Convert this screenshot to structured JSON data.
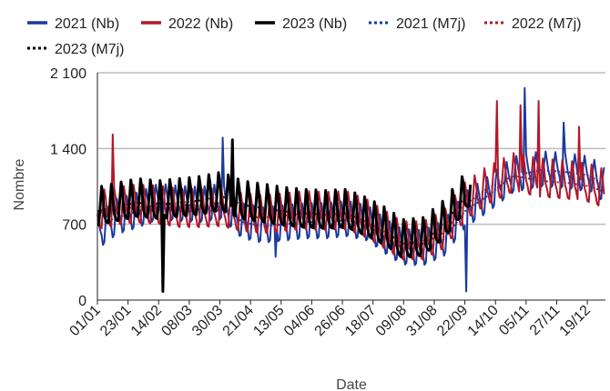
{
  "chart_data": {
    "type": "line",
    "title": "",
    "xlabel": "Date",
    "ylabel": "Nombre",
    "xlim": [
      1,
      366
    ],
    "ylim": [
      0,
      2100
    ],
    "grid": "horizontal",
    "legend_position": "top",
    "y_ticks": [
      {
        "value": 0,
        "label": "0"
      },
      {
        "value": 700,
        "label": "700"
      },
      {
        "value": 1400,
        "label": "1 400"
      },
      {
        "value": 2100,
        "label": "2 100"
      }
    ],
    "x_ticks": [
      {
        "day": 1,
        "label": "01/01"
      },
      {
        "day": 23,
        "label": "23/01"
      },
      {
        "day": 45,
        "label": "14/02"
      },
      {
        "day": 67,
        "label": "08/03"
      },
      {
        "day": 89,
        "label": "30/03"
      },
      {
        "day": 111,
        "label": "21/04"
      },
      {
        "day": 133,
        "label": "13/05"
      },
      {
        "day": 155,
        "label": "04/06"
      },
      {
        "day": 177,
        "label": "26/06"
      },
      {
        "day": 199,
        "label": "18/07"
      },
      {
        "day": 221,
        "label": "09/08"
      },
      {
        "day": 243,
        "label": "31/08"
      },
      {
        "day": 265,
        "label": "22/09"
      },
      {
        "day": 287,
        "label": "14/10"
      },
      {
        "day": 309,
        "label": "05/11"
      },
      {
        "day": 331,
        "label": "27/11"
      },
      {
        "day": 353,
        "label": "19/12"
      }
    ],
    "series": [
      {
        "name": "2021 (Nb)",
        "color": "#1a3a9c",
        "style": "solid",
        "points": [
          [
            1,
            620
          ],
          [
            15,
            760
          ],
          [
            30,
            820
          ],
          [
            45,
            900
          ],
          [
            60,
            880
          ],
          [
            75,
            870
          ],
          [
            90,
            900
          ],
          [
            105,
            720
          ],
          [
            120,
            680
          ],
          [
            135,
            700
          ],
          [
            150,
            720
          ],
          [
            165,
            720
          ],
          [
            180,
            740
          ],
          [
            195,
            700
          ],
          [
            210,
            560
          ],
          [
            220,
            480
          ],
          [
            235,
            470
          ],
          [
            250,
            560
          ],
          [
            265,
            820
          ],
          [
            280,
            950
          ],
          [
            300,
            1150
          ],
          [
            320,
            1200
          ],
          [
            340,
            1180
          ],
          [
            355,
            1150
          ],
          [
            365,
            1050
          ]
        ],
        "wave_amp": 200,
        "wave_period": 7,
        "wave_phase": 0.3,
        "spikes": [
          [
            91,
            1500
          ],
          [
            129,
            400
          ],
          [
            266,
            80
          ],
          [
            308,
            1960
          ],
          [
            336,
            1640
          ]
        ]
      },
      {
        "name": "2022 (Nb)",
        "color": "#b2182b",
        "style": "solid",
        "points": [
          [
            1,
            800
          ],
          [
            15,
            840
          ],
          [
            30,
            860
          ],
          [
            45,
            850
          ],
          [
            60,
            820
          ],
          [
            75,
            820
          ],
          [
            90,
            830
          ],
          [
            105,
            780
          ],
          [
            120,
            760
          ],
          [
            135,
            780
          ],
          [
            150,
            800
          ],
          [
            165,
            790
          ],
          [
            180,
            800
          ],
          [
            195,
            720
          ],
          [
            210,
            600
          ],
          [
            220,
            520
          ],
          [
            235,
            520
          ],
          [
            250,
            620
          ],
          [
            265,
            880
          ],
          [
            280,
            1020
          ],
          [
            300,
            1150
          ],
          [
            320,
            1100
          ],
          [
            340,
            1080
          ],
          [
            355,
            1050
          ],
          [
            365,
            1000
          ]
        ],
        "wave_amp": 220,
        "wave_period": 7,
        "wave_phase": 2.1,
        "spikes": [
          [
            12,
            1530
          ],
          [
            288,
            1840
          ],
          [
            305,
            1800
          ],
          [
            318,
            1840
          ],
          [
            347,
            1600
          ]
        ]
      },
      {
        "name": "2023 (Nb)",
        "color": "#000000",
        "style": "solid",
        "points": [
          [
            1,
            820
          ],
          [
            15,
            860
          ],
          [
            30,
            900
          ],
          [
            45,
            880
          ],
          [
            60,
            900
          ],
          [
            75,
            920
          ],
          [
            90,
            960
          ],
          [
            105,
            880
          ],
          [
            120,
            850
          ],
          [
            135,
            820
          ],
          [
            150,
            800
          ],
          [
            165,
            790
          ],
          [
            180,
            800
          ],
          [
            195,
            720
          ],
          [
            210,
            620
          ],
          [
            220,
            520
          ],
          [
            235,
            540
          ],
          [
            250,
            700
          ],
          [
            262,
            900
          ],
          [
            269,
            1020
          ]
        ],
        "wave_amp": 230,
        "wave_period": 7,
        "wave_phase": 4.0,
        "spikes": [
          [
            48,
            80
          ],
          [
            98,
            1480
          ]
        ]
      },
      {
        "name": "2021 (M7j)",
        "color": "#1a3a9c",
        "style": "dotted",
        "points": [
          [
            1,
            700
          ],
          [
            15,
            760
          ],
          [
            30,
            820
          ],
          [
            45,
            900
          ],
          [
            60,
            880
          ],
          [
            75,
            870
          ],
          [
            90,
            900
          ],
          [
            105,
            720
          ],
          [
            120,
            680
          ],
          [
            135,
            700
          ],
          [
            150,
            720
          ],
          [
            165,
            720
          ],
          [
            180,
            740
          ],
          [
            195,
            700
          ],
          [
            210,
            560
          ],
          [
            220,
            480
          ],
          [
            235,
            470
          ],
          [
            250,
            560
          ],
          [
            265,
            820
          ],
          [
            280,
            950
          ],
          [
            300,
            1150
          ],
          [
            320,
            1200
          ],
          [
            340,
            1180
          ],
          [
            355,
            1150
          ],
          [
            365,
            1050
          ]
        ],
        "wave_amp": 0,
        "wave_period": 7,
        "wave_phase": 0,
        "spikes": []
      },
      {
        "name": "2022 (M7j)",
        "color": "#b2182b",
        "style": "dotted",
        "points": [
          [
            1,
            800
          ],
          [
            15,
            840
          ],
          [
            30,
            860
          ],
          [
            45,
            850
          ],
          [
            60,
            820
          ],
          [
            75,
            820
          ],
          [
            90,
            830
          ],
          [
            105,
            780
          ],
          [
            120,
            760
          ],
          [
            135,
            780
          ],
          [
            150,
            800
          ],
          [
            165,
            790
          ],
          [
            180,
            800
          ],
          [
            195,
            720
          ],
          [
            210,
            600
          ],
          [
            220,
            520
          ],
          [
            235,
            520
          ],
          [
            250,
            620
          ],
          [
            265,
            880
          ],
          [
            280,
            1020
          ],
          [
            300,
            1150
          ],
          [
            320,
            1100
          ],
          [
            340,
            1080
          ],
          [
            355,
            1050
          ],
          [
            365,
            1000
          ]
        ],
        "wave_amp": 0,
        "wave_period": 7,
        "wave_phase": 0,
        "spikes": []
      },
      {
        "name": "2023 (M7j)",
        "color": "#000000",
        "style": "dotted",
        "points": [
          [
            1,
            820
          ],
          [
            15,
            860
          ],
          [
            30,
            900
          ],
          [
            45,
            880
          ],
          [
            60,
            900
          ],
          [
            75,
            920
          ],
          [
            90,
            960
          ],
          [
            105,
            880
          ],
          [
            120,
            850
          ],
          [
            135,
            820
          ],
          [
            150,
            800
          ],
          [
            165,
            790
          ],
          [
            180,
            800
          ],
          [
            195,
            720
          ],
          [
            210,
            620
          ],
          [
            220,
            520
          ],
          [
            235,
            540
          ],
          [
            250,
            700
          ],
          [
            262,
            900
          ],
          [
            269,
            1020
          ]
        ],
        "wave_amp": 0,
        "wave_period": 7,
        "wave_phase": 0,
        "spikes": []
      }
    ]
  }
}
